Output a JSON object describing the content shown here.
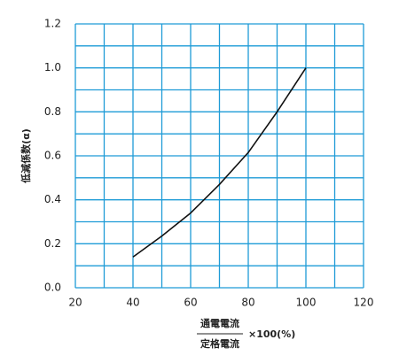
{
  "chart_data": {
    "type": "line",
    "ylabel": "低減係数(α)",
    "xlabel_numerator": "通電電流",
    "xlabel_denominator": "定格電流",
    "xlabel_suffix": "×100(%)",
    "x": [
      40,
      50,
      60,
      70,
      80,
      90,
      100
    ],
    "series": [
      {
        "color": "#111111",
        "values": [
          0.14,
          0.235,
          0.34,
          0.47,
          0.615,
          0.8,
          1.0
        ]
      }
    ],
    "xlim": [
      20,
      120
    ],
    "ylim": [
      0,
      1.2
    ],
    "xticks": [
      20,
      40,
      60,
      80,
      100,
      120
    ],
    "yticks": [
      {
        "value": 0,
        "label": "0.0"
      },
      0.2,
      0.4,
      0.6,
      0.8,
      {
        "value": 1,
        "label": "1.0"
      },
      1.2
    ],
    "x_minor_ticks": [
      30,
      50,
      70,
      90,
      110
    ],
    "y_minor_ticks": [
      0.1,
      0.3,
      0.5,
      0.7,
      0.9,
      1.1
    ],
    "grid": true,
    "grid_color": "#1e9bd7"
  }
}
